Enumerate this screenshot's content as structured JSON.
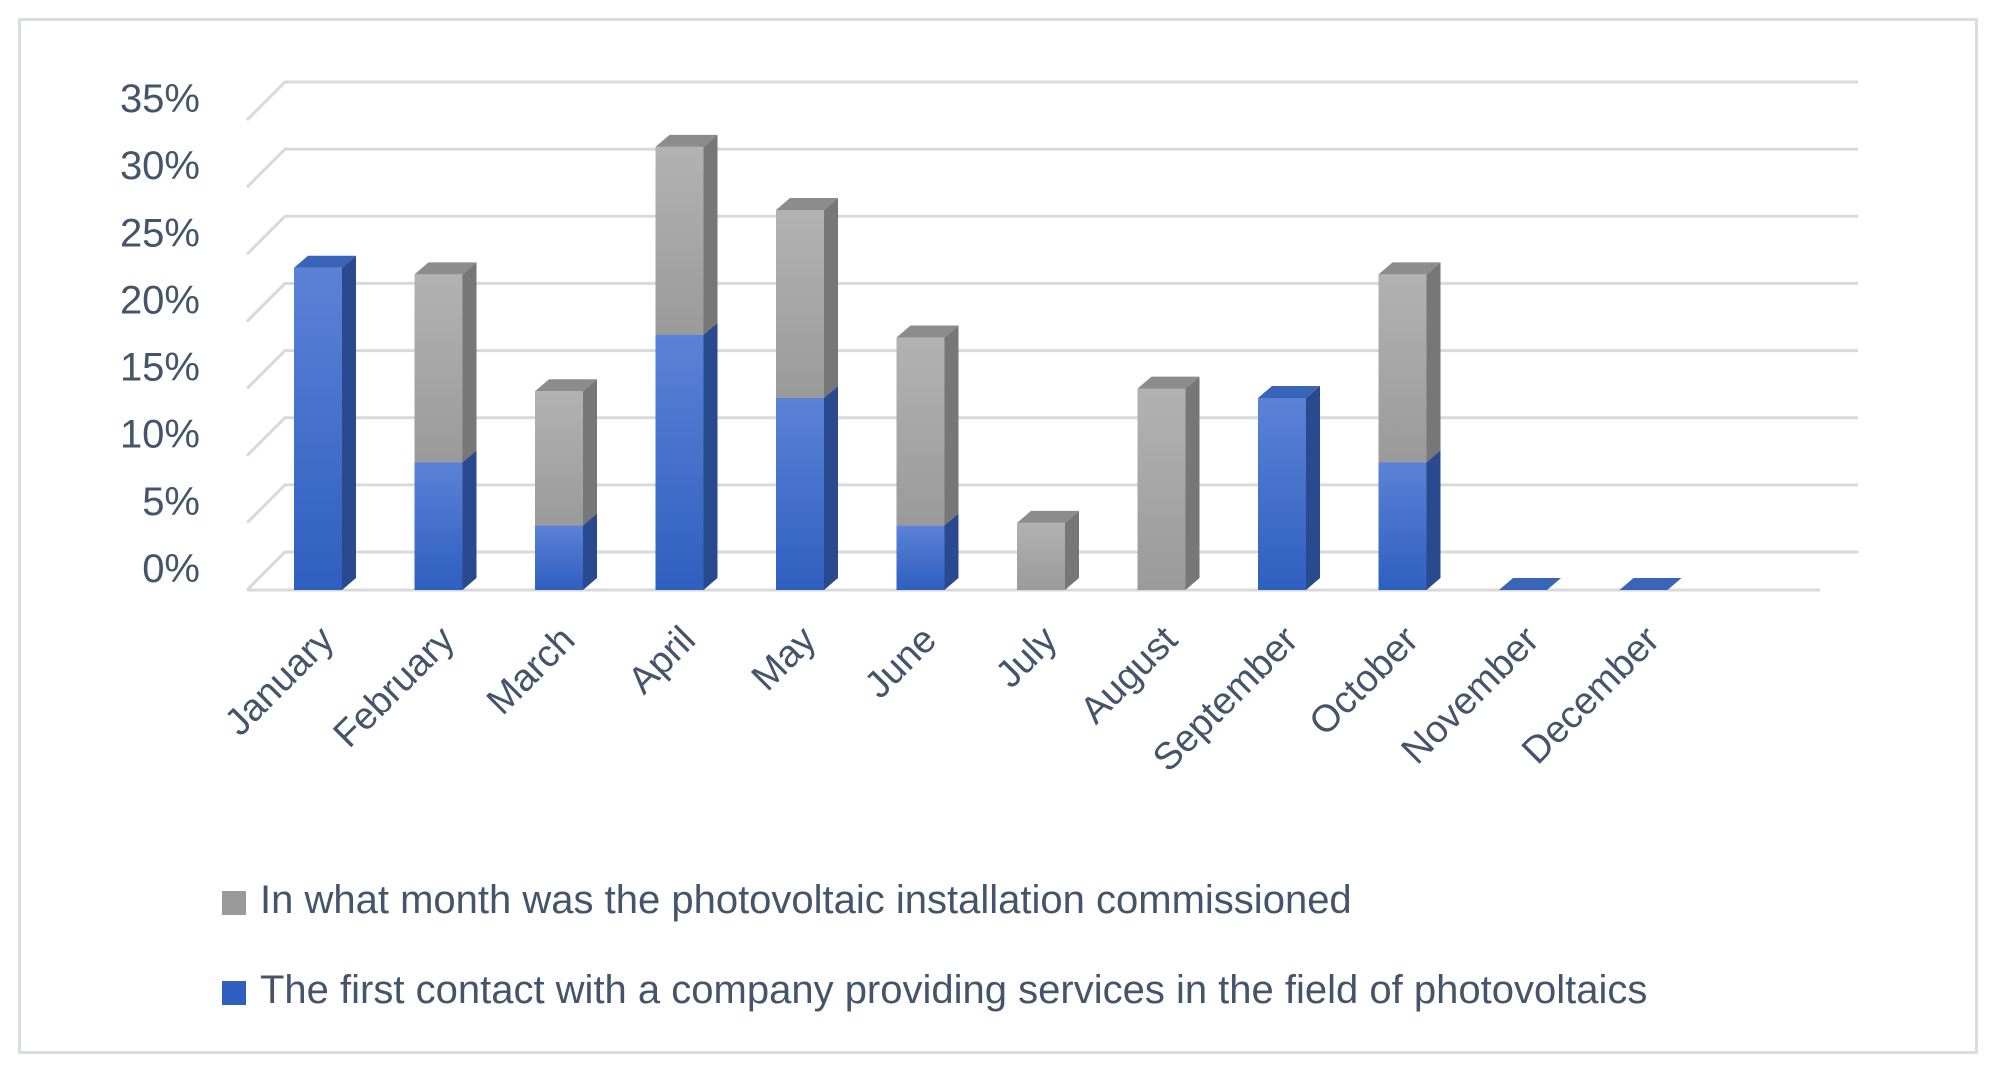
{
  "chart_data": {
    "type": "bar",
    "stacked": true,
    "three_d": true,
    "categories": [
      "January",
      "February",
      "March",
      "April",
      "May",
      "June",
      "July",
      "August",
      "September",
      "October",
      "November",
      "December"
    ],
    "series": [
      {
        "name": "The first contact with a company providing services in the field of photovoltaics",
        "color": "#4472c4",
        "values": [
          24,
          9.5,
          4.8,
          19,
          14.3,
          4.8,
          0,
          0,
          14.3,
          9.5,
          0,
          0
        ]
      },
      {
        "name": "In what month was the photovoltaic installation commissioned",
        "color": "#a5a5a5",
        "values": [
          0,
          14,
          10,
          14,
          14,
          14,
          5,
          15,
          0,
          14,
          0,
          0
        ]
      }
    ],
    "yticks": [
      "0%",
      "5%",
      "10%",
      "15%",
      "20%",
      "25%",
      "30%",
      "35%"
    ],
    "ylim": [
      0,
      35
    ],
    "y_unit": "%",
    "grid": true,
    "legend_position": "bottom",
    "legend_order": [
      "In what month was the photovoltaic installation commissioned",
      "The first contact with a company providing services in the field of photovoltaics"
    ]
  }
}
